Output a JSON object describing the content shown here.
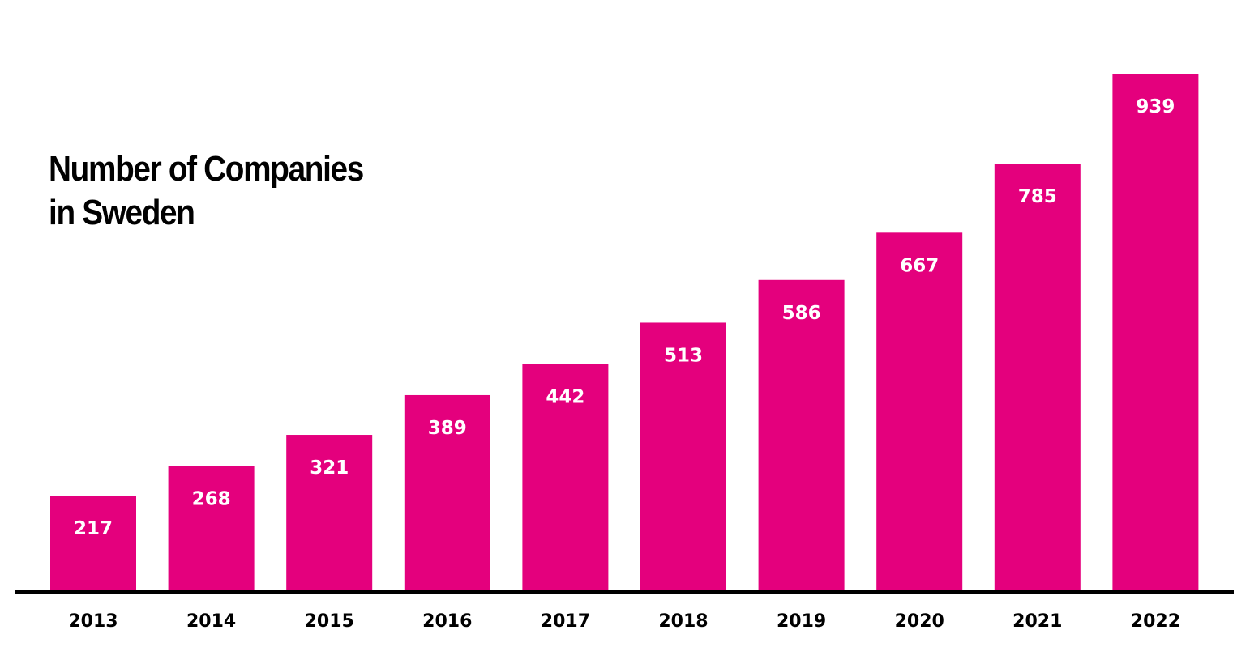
{
  "chart_data": {
    "type": "bar",
    "title": [
      "Number of Companies",
      "in Sweden"
    ],
    "xlabel": "",
    "ylabel": "",
    "categories": [
      "2013",
      "2014",
      "2015",
      "2016",
      "2017",
      "2018",
      "2019",
      "2020",
      "2021",
      "2022"
    ],
    "values": [
      217,
      268,
      321,
      389,
      442,
      513,
      586,
      667,
      785,
      939
    ],
    "ylim": [
      55,
      1000
    ],
    "grid": false,
    "data_labels": true,
    "bar_color": "#E4007D",
    "axis_color": "#000000"
  }
}
